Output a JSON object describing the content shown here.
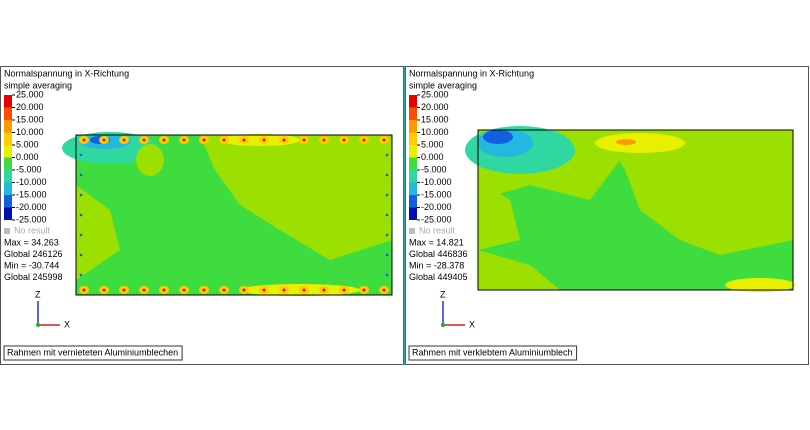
{
  "panels": [
    {
      "title": "Normalspannung in X-Richtung",
      "subtitle": "simple averaging",
      "legend": [
        "25.000",
        "20.000",
        "15.000",
        "10.000",
        "5.000",
        "0.000",
        "-5.000",
        "-10.000",
        "-15.000",
        "-20.000",
        "-25.000"
      ],
      "no_result": "No result",
      "stats": [
        "Max = 34.263",
        "Global 246126",
        "Min = -30.744",
        "Global 245998"
      ],
      "axis_z": "Z",
      "axis_x": "X",
      "caption": "Rahmen mit vernieteten Aluminiumblechen"
    },
    {
      "title": "Normalspannung in X-Richtung",
      "subtitle": "simple averaging",
      "legend": [
        "25.000",
        "20.000",
        "15.000",
        "10.000",
        "5.000",
        "0.000",
        "-5.000",
        "-10.000",
        "-15.000",
        "-20.000",
        "-25.000"
      ],
      "no_result": "No result",
      "stats": [
        "Max = 14.821",
        "Global 446836",
        "Min = -28.378",
        "Global 449405"
      ],
      "axis_z": "Z",
      "axis_x": "X",
      "caption": "Rahmen mit verklebtem Aluminiumblech"
    }
  ]
}
